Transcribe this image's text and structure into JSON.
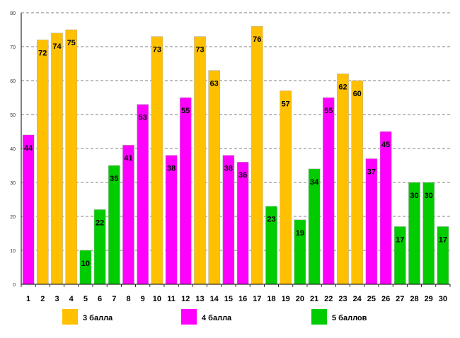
{
  "chart_data": {
    "type": "bar",
    "title": "",
    "xlabel": "",
    "ylabel": "",
    "ylim": [
      0,
      80
    ],
    "y_ticks": [
      "0",
      "10",
      "20",
      "30",
      "40",
      "50",
      "60",
      "70",
      "80"
    ],
    "grid": true,
    "legend_position": "bottom",
    "categories": [
      "1",
      "2",
      "3",
      "4",
      "5",
      "6",
      "7",
      "8",
      "9",
      "10",
      "11",
      "12",
      "13",
      "14",
      "15",
      "16",
      "17",
      "18",
      "19",
      "20",
      "21",
      "22",
      "23",
      "24",
      "25",
      "26",
      "27",
      "28",
      "29",
      "30"
    ],
    "values": [
      44,
      72,
      74,
      75,
      10,
      22,
      35,
      41,
      53,
      73,
      38,
      55,
      73,
      63,
      38,
      36,
      76,
      23,
      57,
      19,
      34,
      55,
      62,
      60,
      37,
      45,
      17,
      30,
      30,
      17
    ],
    "groups": [
      "b",
      "a",
      "a",
      "a",
      "c",
      "c",
      "c",
      "b",
      "b",
      "a",
      "b",
      "b",
      "a",
      "a",
      "b",
      "b",
      "a",
      "c",
      "a",
      "c",
      "c",
      "b",
      "a",
      "a",
      "b",
      "b",
      "c",
      "c",
      "c",
      "c"
    ],
    "labels": [
      "44",
      "72",
      "74",
      "75",
      "10",
      "22",
      "35",
      "41",
      "53",
      "73",
      "38",
      "55",
      "73",
      "63",
      "38",
      "36",
      "76",
      "23",
      "57",
      "19",
      "34",
      "55",
      "62",
      "60",
      "37",
      "45",
      "17",
      "30",
      "30",
      "17"
    ],
    "series": [
      {
        "key": "a",
        "name": "3 балла",
        "color": "#FFC000"
      },
      {
        "key": "b",
        "name": "4 балла",
        "color": "#FF00FF"
      },
      {
        "key": "c",
        "name": "5 баллов",
        "color": "#00CC00"
      }
    ]
  }
}
